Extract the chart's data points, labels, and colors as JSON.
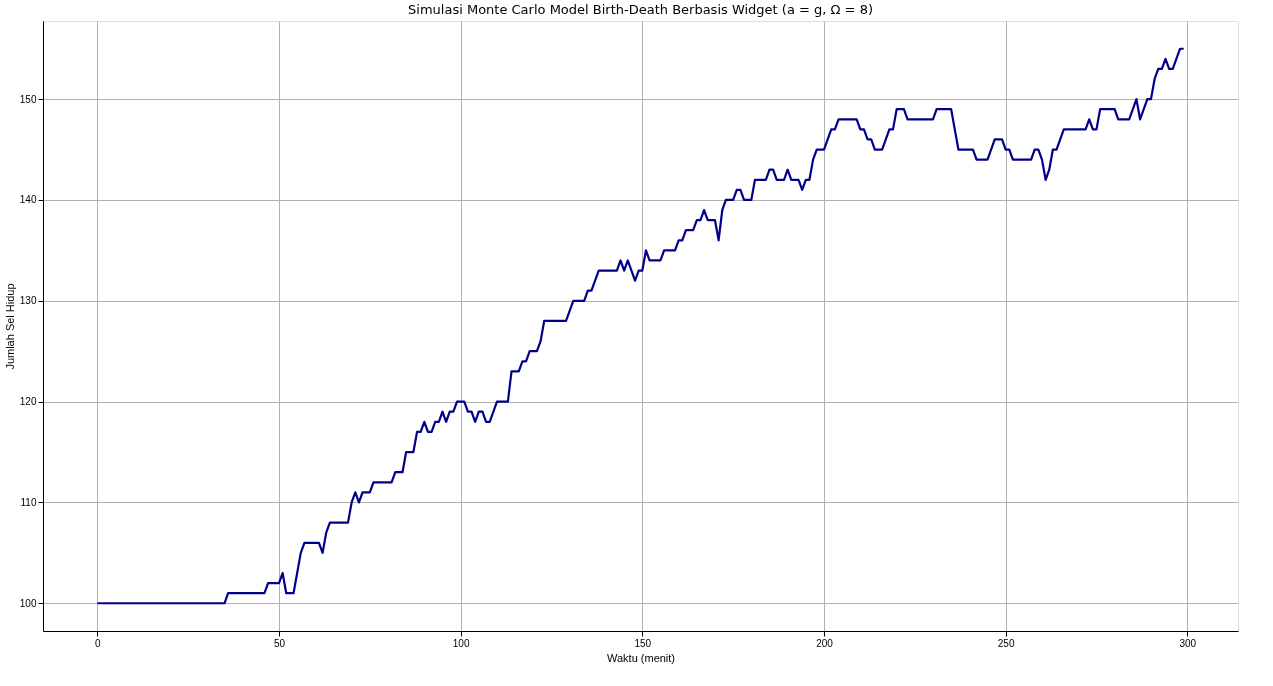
{
  "chart_data": {
    "type": "line",
    "title": "Simulasi Monte Carlo Model Birth-Death Berbasis Widget (a = g, Ω = 8)",
    "xlabel": "Waktu (menit)",
    "ylabel": "Jumlah Sel Hidup",
    "x": [
      0,
      35,
      36,
      46,
      47,
      50,
      51,
      52,
      54,
      56,
      57,
      61,
      62,
      63,
      64,
      69,
      70,
      71,
      72,
      73,
      75,
      76,
      81,
      82,
      84,
      85,
      87,
      88,
      89,
      90,
      91,
      92,
      93,
      94,
      95,
      96,
      97,
      98,
      99,
      101,
      102,
      103,
      104,
      105,
      106,
      107,
      108,
      110,
      113,
      114,
      116,
      117,
      118,
      119,
      121,
      122,
      123,
      129,
      131,
      134,
      135,
      136,
      138,
      143,
      144,
      145,
      146,
      148,
      149,
      150,
      151,
      152,
      155,
      156,
      159,
      160,
      161,
      162,
      164,
      165,
      166,
      167,
      168,
      170,
      171,
      172,
      173,
      175,
      176,
      177,
      178,
      180,
      181,
      184,
      185,
      186,
      187,
      189,
      190,
      191,
      193,
      194,
      195,
      196,
      197,
      198,
      200,
      202,
      203,
      204,
      209,
      210,
      211,
      212,
      213,
      214,
      216,
      218,
      219,
      220,
      222,
      223,
      230,
      231,
      235,
      236,
      237,
      241,
      242,
      245,
      247,
      249,
      250,
      251,
      252,
      257,
      258,
      259,
      260,
      261,
      262,
      263,
      264,
      266,
      272,
      273,
      274,
      275,
      276,
      280,
      281,
      284,
      286,
      287,
      289,
      290,
      291,
      292,
      293,
      294,
      295,
      296,
      298,
      299
    ],
    "series": [
      {
        "color": "#00008b",
        "values": [
          100,
          100,
          101,
          101,
          102,
          102,
          103,
          101,
          101,
          105,
          106,
          106,
          105,
          107,
          108,
          108,
          110,
          111,
          110,
          111,
          111,
          112,
          112,
          113,
          113,
          115,
          115,
          117,
          117,
          118,
          117,
          117,
          118,
          118,
          119,
          118,
          119,
          119,
          120,
          120,
          119,
          119,
          118,
          119,
          119,
          118,
          118,
          120,
          120,
          123,
          123,
          124,
          124,
          125,
          125,
          126,
          128,
          128,
          130,
          130,
          131,
          131,
          133,
          133,
          134,
          133,
          134,
          132,
          133,
          133,
          135,
          134,
          134,
          135,
          135,
          136,
          136,
          137,
          137,
          138,
          138,
          139,
          138,
          138,
          136,
          139,
          140,
          140,
          141,
          141,
          140,
          140,
          142,
          142,
          143,
          143,
          142,
          142,
          143,
          142,
          142,
          141,
          142,
          142,
          144,
          145,
          145,
          147,
          147,
          148,
          148,
          147,
          147,
          146,
          146,
          145,
          145,
          147,
          147,
          149,
          149,
          148,
          148,
          149,
          149,
          147,
          145,
          145,
          144,
          144,
          146,
          146,
          145,
          145,
          144,
          144,
          145,
          145,
          144,
          142,
          143,
          145,
          145,
          147,
          147,
          148,
          147,
          147,
          149,
          149,
          148,
          148,
          150,
          148,
          150,
          150,
          152,
          153,
          153,
          154,
          153,
          153,
          155,
          155
        ]
      }
    ],
    "xlim": [
      -14.95,
      313.95
    ],
    "ylim": [
      97.25,
      157.75
    ],
    "xticks": [
      0,
      50,
      100,
      150,
      200,
      250,
      300
    ],
    "yticks": [
      100,
      110,
      120,
      130,
      140,
      150
    ],
    "grid": true,
    "marker": "none",
    "line_style": "solid"
  }
}
